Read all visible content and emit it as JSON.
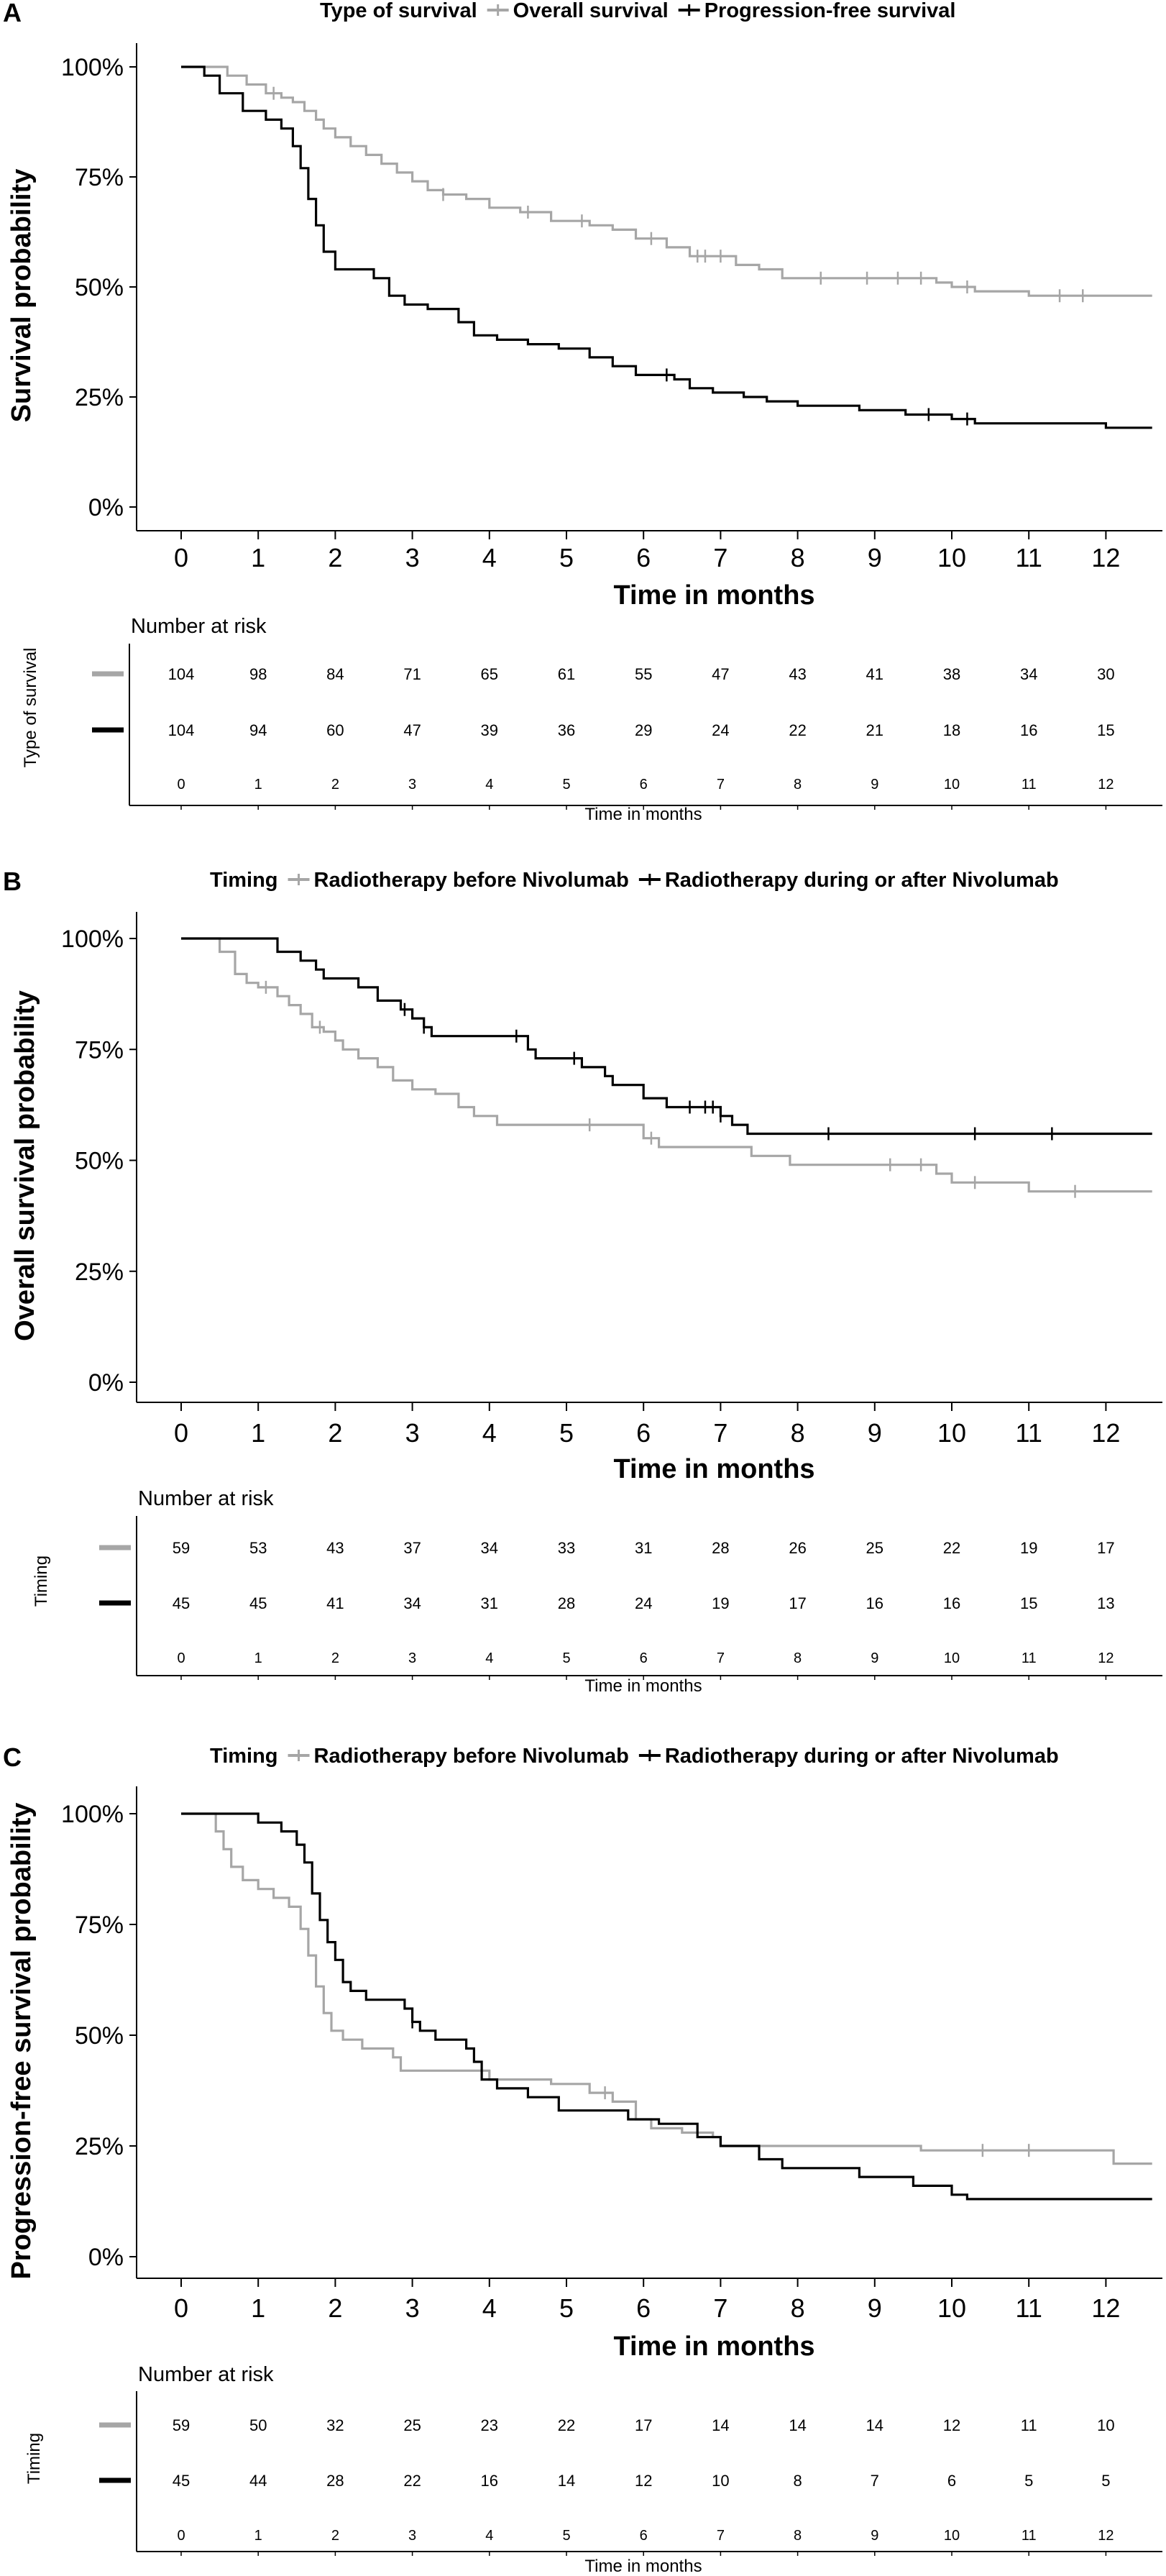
{
  "chart_data": [
    {
      "type": "line",
      "panel": "A",
      "legend_title": "Type of survival",
      "xlabel": "Time in months",
      "ylabel": "Survival probability",
      "x_ticks": [
        "0",
        "1",
        "2",
        "3",
        "4",
        "5",
        "6",
        "7",
        "8",
        "9",
        "10",
        "11",
        "12"
      ],
      "y_ticks": [
        "0%",
        "25%",
        "50%",
        "75%",
        "100%"
      ],
      "xlim": [
        0,
        12.6
      ],
      "ylim": [
        0,
        100
      ],
      "grid": false,
      "legend_position": "top",
      "series": [
        {
          "name": "Overall survival",
          "color": "#a6a6a6",
          "points": [
            [
              0,
              100
            ],
            [
              0.55,
              100
            ],
            [
              0.6,
              98
            ],
            [
              0.85,
              96
            ],
            [
              1.1,
              94
            ],
            [
              1.3,
              93
            ],
            [
              1.45,
              92
            ],
            [
              1.6,
              90
            ],
            [
              1.75,
              88
            ],
            [
              1.85,
              86
            ],
            [
              2.0,
              84
            ],
            [
              2.2,
              82
            ],
            [
              2.4,
              80
            ],
            [
              2.6,
              78
            ],
            [
              2.8,
              76
            ],
            [
              3.0,
              74
            ],
            [
              3.2,
              72
            ],
            [
              3.4,
              71
            ],
            [
              3.7,
              70
            ],
            [
              4.0,
              68
            ],
            [
              4.4,
              67
            ],
            [
              4.8,
              65
            ],
            [
              5.3,
              64
            ],
            [
              5.6,
              63
            ],
            [
              5.9,
              61
            ],
            [
              6.3,
              59
            ],
            [
              6.6,
              57
            ],
            [
              7.2,
              55
            ],
            [
              7.5,
              54
            ],
            [
              7.8,
              52
            ],
            [
              8.6,
              52
            ],
            [
              9.8,
              51
            ],
            [
              10.0,
              50
            ],
            [
              10.3,
              49
            ],
            [
              11.0,
              48
            ],
            [
              12.6,
              48
            ]
          ],
          "censor_x": [
            1.2,
            3.4,
            4.5,
            5.2,
            6.1,
            6.7,
            6.8,
            7.0,
            8.3,
            8.9,
            9.3,
            9.6,
            10.2,
            11.4,
            11.7
          ]
        },
        {
          "name": "Progression-free survival",
          "color": "#000000",
          "points": [
            [
              0,
              100
            ],
            [
              0.25,
              100
            ],
            [
              0.3,
              98
            ],
            [
              0.5,
              94
            ],
            [
              0.8,
              90
            ],
            [
              1.1,
              88
            ],
            [
              1.3,
              86
            ],
            [
              1.45,
              82
            ],
            [
              1.55,
              77
            ],
            [
              1.65,
              70
            ],
            [
              1.75,
              64
            ],
            [
              1.85,
              58
            ],
            [
              2.0,
              54
            ],
            [
              2.5,
              52
            ],
            [
              2.7,
              48
            ],
            [
              2.9,
              46
            ],
            [
              3.2,
              45
            ],
            [
              3.6,
              42
            ],
            [
              3.8,
              39
            ],
            [
              4.1,
              38
            ],
            [
              4.5,
              37
            ],
            [
              4.9,
              36
            ],
            [
              5.3,
              34
            ],
            [
              5.6,
              32
            ],
            [
              5.9,
              30
            ],
            [
              6.4,
              29
            ],
            [
              6.6,
              27
            ],
            [
              6.9,
              26
            ],
            [
              7.3,
              25
            ],
            [
              7.6,
              24
            ],
            [
              8.0,
              23
            ],
            [
              8.6,
              23
            ],
            [
              8.8,
              22
            ],
            [
              9.4,
              21
            ],
            [
              10.0,
              20
            ],
            [
              10.3,
              19
            ],
            [
              12.0,
              18
            ],
            [
              12.6,
              18
            ]
          ],
          "censor_x": [
            6.3,
            9.7,
            10.2
          ]
        }
      ],
      "risk_table": {
        "title": "Number at risk",
        "ylabel": "Type of survival",
        "xlabel": "Time in months",
        "rows": [
          {
            "color": "#a6a6a6",
            "values": [
              "104",
              "98",
              "84",
              "71",
              "65",
              "61",
              "55",
              "47",
              "43",
              "41",
              "38",
              "34",
              "30"
            ]
          },
          {
            "color": "#000000",
            "values": [
              "104",
              "94",
              "60",
              "47",
              "39",
              "36",
              "29",
              "24",
              "22",
              "21",
              "18",
              "16",
              "15"
            ]
          }
        ]
      }
    },
    {
      "type": "line",
      "panel": "B",
      "legend_title": "Timing",
      "xlabel": "Time in months",
      "ylabel": "Overall survival probability",
      "x_ticks": [
        "0",
        "1",
        "2",
        "3",
        "4",
        "5",
        "6",
        "7",
        "8",
        "9",
        "10",
        "11",
        "12"
      ],
      "y_ticks": [
        "0%",
        "25%",
        "50%",
        "75%",
        "100%"
      ],
      "xlim": [
        0,
        12.6
      ],
      "ylim": [
        0,
        100
      ],
      "grid": false,
      "legend_position": "top",
      "series": [
        {
          "name": "Radiotherapy before Nivolumab",
          "color": "#a6a6a6",
          "points": [
            [
              0,
              100
            ],
            [
              0.4,
              100
            ],
            [
              0.5,
              97
            ],
            [
              0.7,
              92
            ],
            [
              0.85,
              90
            ],
            [
              1.0,
              89
            ],
            [
              1.25,
              87
            ],
            [
              1.4,
              85
            ],
            [
              1.55,
              83
            ],
            [
              1.7,
              80
            ],
            [
              1.85,
              79
            ],
            [
              2.0,
              77
            ],
            [
              2.1,
              75
            ],
            [
              2.3,
              73
            ],
            [
              2.55,
              71
            ],
            [
              2.75,
              68
            ],
            [
              3.0,
              66
            ],
            [
              3.3,
              65
            ],
            [
              3.6,
              62
            ],
            [
              3.8,
              60
            ],
            [
              4.1,
              58
            ],
            [
              5.8,
              58
            ],
            [
              6.0,
              55
            ],
            [
              6.2,
              53
            ],
            [
              7.4,
              51
            ],
            [
              7.9,
              49
            ],
            [
              9.7,
              49
            ],
            [
              9.8,
              47
            ],
            [
              10.0,
              45
            ],
            [
              11.0,
              43
            ],
            [
              12.6,
              43
            ]
          ],
          "censor_x": [
            1.1,
            1.8,
            5.3,
            6.1,
            9.2,
            9.6,
            10.3,
            11.6
          ]
        },
        {
          "name": "Radiotherapy during or after Nivolumab",
          "color": "#000000",
          "points": [
            [
              0,
              100
            ],
            [
              1.15,
              100
            ],
            [
              1.25,
              97
            ],
            [
              1.55,
              95
            ],
            [
              1.75,
              93
            ],
            [
              1.85,
              91
            ],
            [
              2.3,
              89
            ],
            [
              2.55,
              86
            ],
            [
              2.85,
              84
            ],
            [
              3.0,
              82
            ],
            [
              3.15,
              80
            ],
            [
              3.25,
              78
            ],
            [
              4.4,
              78
            ],
            [
              4.5,
              75
            ],
            [
              4.6,
              73
            ],
            [
              5.2,
              71
            ],
            [
              5.5,
              69
            ],
            [
              5.6,
              67
            ],
            [
              6.0,
              64
            ],
            [
              6.3,
              62
            ],
            [
              7.0,
              60
            ],
            [
              7.15,
              58
            ],
            [
              7.35,
              56
            ],
            [
              12.6,
              56
            ]
          ],
          "censor_x": [
            2.9,
            3.15,
            4.35,
            5.1,
            6.6,
            6.8,
            6.9,
            7.0,
            8.4,
            10.3,
            11.3
          ]
        }
      ],
      "risk_table": {
        "title": "Number at risk",
        "ylabel": "Timing",
        "xlabel": "Time in months",
        "rows": [
          {
            "color": "#a6a6a6",
            "values": [
              "59",
              "53",
              "43",
              "37",
              "34",
              "33",
              "31",
              "28",
              "26",
              "25",
              "22",
              "19",
              "17"
            ]
          },
          {
            "color": "#000000",
            "values": [
              "45",
              "45",
              "41",
              "34",
              "31",
              "28",
              "24",
              "19",
              "17",
              "16",
              "16",
              "15",
              "13"
            ]
          }
        ]
      }
    },
    {
      "type": "line",
      "panel": "C",
      "legend_title": "Timing",
      "xlabel": "Time in months",
      "ylabel": "Progression-free survival probability",
      "x_ticks": [
        "0",
        "1",
        "2",
        "3",
        "4",
        "5",
        "6",
        "7",
        "8",
        "9",
        "10",
        "11",
        "12"
      ],
      "y_ticks": [
        "0%",
        "25%",
        "50%",
        "75%",
        "100%"
      ],
      "xlim": [
        0,
        12.6
      ],
      "ylim": [
        0,
        100
      ],
      "grid": false,
      "legend_position": "top",
      "series": [
        {
          "name": "Radiotherapy before Nivolumab",
          "color": "#a6a6a6",
          "points": [
            [
              0,
              100
            ],
            [
              0.35,
              100
            ],
            [
              0.45,
              96
            ],
            [
              0.55,
              92
            ],
            [
              0.65,
              88
            ],
            [
              0.8,
              85
            ],
            [
              1.0,
              83
            ],
            [
              1.2,
              81
            ],
            [
              1.4,
              79
            ],
            [
              1.55,
              74
            ],
            [
              1.65,
              68
            ],
            [
              1.75,
              61
            ],
            [
              1.85,
              55
            ],
            [
              1.95,
              51
            ],
            [
              2.1,
              49
            ],
            [
              2.35,
              47
            ],
            [
              2.75,
              45
            ],
            [
              2.85,
              42
            ],
            [
              3.85,
              42
            ],
            [
              4.0,
              40
            ],
            [
              4.8,
              39
            ],
            [
              5.3,
              37
            ],
            [
              5.6,
              35
            ],
            [
              5.9,
              31
            ],
            [
              6.1,
              29
            ],
            [
              6.5,
              28
            ],
            [
              6.9,
              27
            ],
            [
              7.0,
              25
            ],
            [
              9.4,
              25
            ],
            [
              9.6,
              24
            ],
            [
              12.0,
              24
            ],
            [
              12.1,
              21
            ],
            [
              12.6,
              21
            ]
          ],
          "censor_x": [
            5.5,
            10.4,
            11.0
          ]
        },
        {
          "name": "Radiotherapy during or after Nivolumab",
          "color": "#000000",
          "points": [
            [
              0,
              100
            ],
            [
              0.9,
              100
            ],
            [
              1.0,
              98
            ],
            [
              1.3,
              96
            ],
            [
              1.5,
              93
            ],
            [
              1.6,
              89
            ],
            [
              1.7,
              82
            ],
            [
              1.8,
              76
            ],
            [
              1.9,
              71
            ],
            [
              2.0,
              67
            ],
            [
              2.1,
              62
            ],
            [
              2.2,
              60
            ],
            [
              2.4,
              58
            ],
            [
              2.9,
              56
            ],
            [
              3.0,
              53
            ],
            [
              3.1,
              51
            ],
            [
              3.3,
              49
            ],
            [
              3.7,
              47
            ],
            [
              3.8,
              44
            ],
            [
              3.9,
              40
            ],
            [
              4.1,
              38
            ],
            [
              4.5,
              36
            ],
            [
              4.9,
              33
            ],
            [
              5.7,
              33
            ],
            [
              5.8,
              31
            ],
            [
              6.2,
              30
            ],
            [
              6.7,
              27
            ],
            [
              7.0,
              25
            ],
            [
              7.5,
              22
            ],
            [
              7.8,
              20
            ],
            [
              8.5,
              20
            ],
            [
              8.8,
              18
            ],
            [
              9.4,
              18
            ],
            [
              9.5,
              16
            ],
            [
              10.0,
              14
            ],
            [
              10.2,
              13
            ],
            [
              12.6,
              13
            ]
          ],
          "censor_x": [
            3.0
          ]
        }
      ],
      "risk_table": {
        "title": "Number at risk",
        "ylabel": "Timing",
        "xlabel": "Time in months",
        "rows": [
          {
            "color": "#a6a6a6",
            "values": [
              "59",
              "50",
              "32",
              "25",
              "23",
              "22",
              "17",
              "14",
              "14",
              "14",
              "12",
              "11",
              "10"
            ]
          },
          {
            "color": "#000000",
            "values": [
              "45",
              "44",
              "28",
              "22",
              "16",
              "14",
              "12",
              "10",
              "8",
              "7",
              "6",
              "5",
              "5"
            ]
          }
        ]
      }
    }
  ]
}
